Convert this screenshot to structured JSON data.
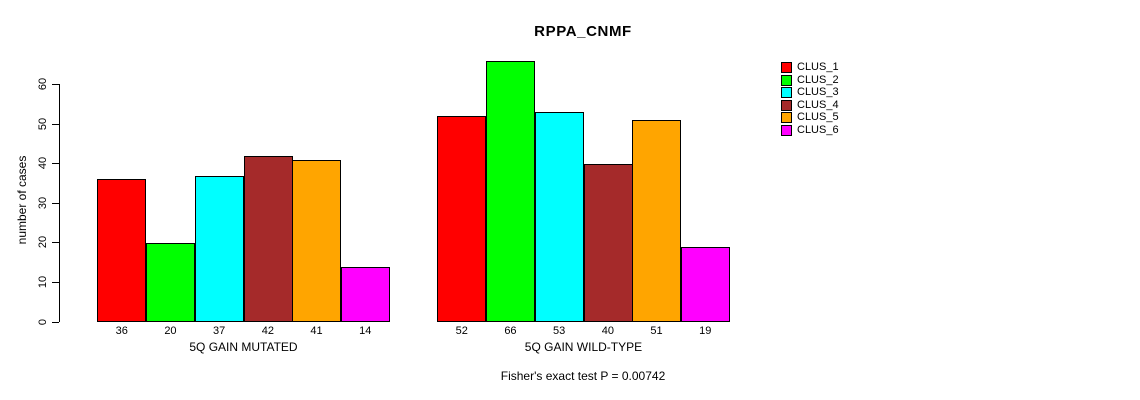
{
  "chart_data": {
    "type": "bar",
    "title": "RPPA_CNMF",
    "xlabel": "",
    "ylabel": "number of cases",
    "ylim": [
      0,
      66
    ],
    "yticks": [
      0,
      10,
      20,
      30,
      40,
      50,
      60
    ],
    "grid": false,
    "legend_position": "right",
    "bar_border_color": "#000000",
    "categories": [
      "5Q GAIN MUTATED",
      "5Q GAIN WILD-TYPE"
    ],
    "series": [
      {
        "name": "CLUS_1",
        "color": "#FF0000",
        "values": [
          36,
          52
        ]
      },
      {
        "name": "CLUS_2",
        "color": "#00FF00",
        "values": [
          20,
          66
        ]
      },
      {
        "name": "CLUS_3",
        "color": "#00FFFF",
        "values": [
          37,
          53
        ]
      },
      {
        "name": "CLUS_4",
        "color": "#A52A2A",
        "values": [
          42,
          40
        ]
      },
      {
        "name": "CLUS_5",
        "color": "#FFA500",
        "values": [
          41,
          51
        ]
      },
      {
        "name": "CLUS_6",
        "color": "#FF00FF",
        "values": [
          14,
          19
        ]
      }
    ],
    "bar_value_labels": {
      "5Q GAIN MUTATED": [
        36,
        20,
        37,
        42,
        41,
        14
      ],
      "5Q GAIN WILD-TYPE": [
        52,
        66,
        53,
        40,
        51,
        19
      ]
    },
    "annotation": "Fisher's exact test P = 0.00742"
  }
}
